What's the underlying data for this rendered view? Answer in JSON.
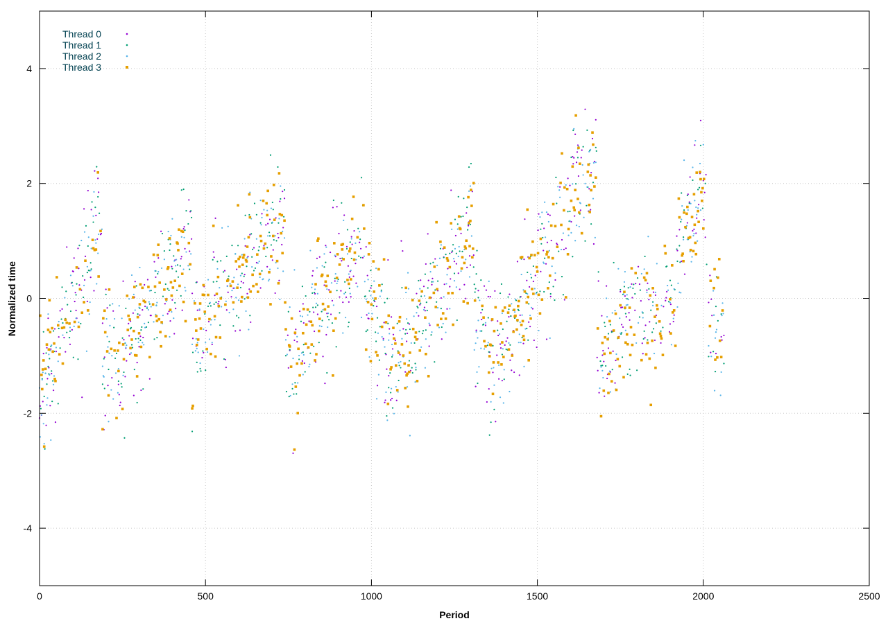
{
  "chart_data": {
    "type": "scatter",
    "title": "",
    "xlabel": "Period",
    "ylabel": "Normalized time",
    "xlim": [
      0,
      2500
    ],
    "ylim": [
      -5,
      5
    ],
    "x_ticks": [
      0,
      500,
      1000,
      1500,
      2000,
      2500
    ],
    "x_tick_labels": [
      "0",
      "500",
      "1000",
      "1500",
      "2000",
      "2500"
    ],
    "y_ticks": [
      -4,
      -2,
      0,
      2,
      4
    ],
    "y_tick_labels": [
      "-4",
      "-2",
      "0",
      "2",
      "4"
    ],
    "grid": true,
    "legend_position": "top-left",
    "x_points": 2064,
    "segments": [
      {
        "start": 0,
        "end": 190,
        "from": -1.6,
        "to": 1.3
      },
      {
        "start": 190,
        "end": 250,
        "from": -0.7,
        "to": -1.0
      },
      {
        "start": 250,
        "end": 460,
        "from": -1.0,
        "to": 1.0
      },
      {
        "start": 460,
        "end": 740,
        "from": -0.7,
        "to": 1.3
      },
      {
        "start": 740,
        "end": 780,
        "from": -0.8,
        "to": -1.1
      },
      {
        "start": 780,
        "end": 980,
        "from": -0.8,
        "to": 1.1
      },
      {
        "start": 980,
        "end": 1040,
        "from": -0.1,
        "to": -0.4
      },
      {
        "start": 1040,
        "end": 1140,
        "from": -1.0,
        "to": -0.8
      },
      {
        "start": 1140,
        "end": 1310,
        "from": -0.4,
        "to": 1.3
      },
      {
        "start": 1310,
        "end": 1360,
        "from": -0.3,
        "to": -0.9
      },
      {
        "start": 1360,
        "end": 1680,
        "from": -1.2,
        "to": 2.5
      },
      {
        "start": 1680,
        "end": 1760,
        "from": -0.9,
        "to": -0.6
      },
      {
        "start": 1760,
        "end": 1920,
        "from": -0.3,
        "to": 0.0
      },
      {
        "start": 1920,
        "end": 2010,
        "from": 0.6,
        "to": 2.3
      },
      {
        "start": 2010,
        "end": 2064,
        "from": -0.2,
        "to": -0.7
      }
    ],
    "noise_sigma": 0.55,
    "series": [
      {
        "name": "Thread 0",
        "color": "#9400d3",
        "marker": "dot",
        "seed": 11
      },
      {
        "name": "Thread 1",
        "color": "#009e73",
        "marker": "dot",
        "seed": 23
      },
      {
        "name": "Thread 2",
        "color": "#56b4e9",
        "marker": "dot",
        "seed": 37
      },
      {
        "name": "Thread 3",
        "color": "#e69f00",
        "marker": "square",
        "seed": 53
      }
    ]
  }
}
